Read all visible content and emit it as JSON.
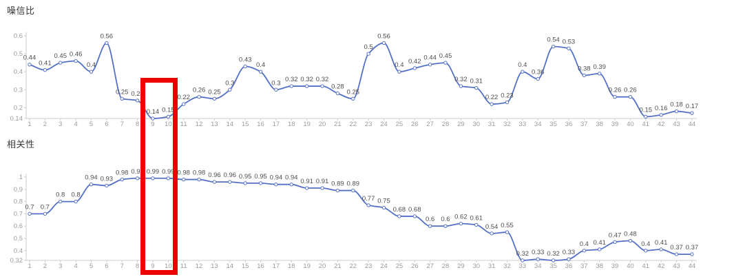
{
  "colors": {
    "line": "#5470c6",
    "marker_fill": "#ffffff",
    "point_label": "#4d4d4d",
    "axis_label": "#9b9b9b",
    "axis_line": "#cccccc",
    "highlight": "#ee0000",
    "background": "#ffffff"
  },
  "chart_data": [
    {
      "type": "line",
      "title": "噪信比",
      "smooth": true,
      "grid": false,
      "legend": "none",
      "x": [
        1,
        2,
        3,
        4,
        5,
        6,
        7,
        8,
        9,
        10,
        11,
        12,
        13,
        14,
        15,
        16,
        17,
        18,
        19,
        20,
        21,
        22,
        23,
        24,
        25,
        26,
        27,
        28,
        29,
        30,
        31,
        32,
        33,
        34,
        35,
        36,
        37,
        38,
        39,
        40,
        41,
        42,
        43,
        44
      ],
      "values": [
        0.44,
        0.41,
        0.45,
        0.46,
        0.4,
        0.56,
        0.25,
        0.24,
        0.14,
        0.15,
        0.22,
        0.26,
        0.25,
        0.3,
        0.43,
        0.4,
        0.3,
        0.32,
        0.32,
        0.32,
        0.28,
        0.25,
        0.5,
        0.56,
        0.4,
        0.42,
        0.44,
        0.45,
        0.32,
        0.31,
        0.22,
        0.23,
        0.4,
        0.36,
        0.54,
        0.53,
        0.38,
        0.39,
        0.26,
        0.26,
        0.15,
        0.16,
        0.18,
        0.17
      ],
      "ylim": [
        0.14,
        0.6
      ],
      "y_ticks": [
        0.6,
        0.5,
        0.4,
        0.3,
        0.2,
        0.14
      ],
      "point_labels_visible": true
    },
    {
      "type": "line",
      "title": "相关性",
      "smooth": true,
      "grid": false,
      "legend": "none",
      "x": [
        1,
        2,
        3,
        4,
        5,
        6,
        7,
        8,
        9,
        10,
        11,
        12,
        13,
        14,
        15,
        16,
        17,
        18,
        19,
        20,
        21,
        22,
        23,
        24,
        25,
        26,
        27,
        28,
        29,
        30,
        31,
        32,
        33,
        34,
        35,
        36,
        37,
        38,
        39,
        40,
        41,
        42,
        43,
        44
      ],
      "values": [
        0.7,
        0.7,
        0.8,
        0.8,
        0.94,
        0.93,
        0.98,
        0.99,
        0.99,
        0.99,
        0.98,
        0.98,
        0.96,
        0.96,
        0.95,
        0.95,
        0.94,
        0.94,
        0.91,
        0.91,
        0.89,
        0.89,
        0.77,
        0.75,
        0.68,
        0.68,
        0.6,
        0.6,
        0.62,
        0.61,
        0.54,
        0.55,
        0.32,
        0.33,
        0.32,
        0.33,
        0.4,
        0.41,
        0.47,
        0.48,
        0.4,
        0.41,
        0.37,
        0.37
      ],
      "ylim": [
        0.32,
        1
      ],
      "y_ticks": [
        1,
        0.9,
        0.8,
        0.7,
        0.6,
        0.5,
        0.4,
        0.32
      ],
      "point_labels_visible": true
    }
  ],
  "annotation": {
    "type": "highlight-rectangle",
    "color": "#ee0000",
    "x_from": 9,
    "x_to": 10,
    "note": "red box spanning x positions 9-10 across both charts"
  }
}
